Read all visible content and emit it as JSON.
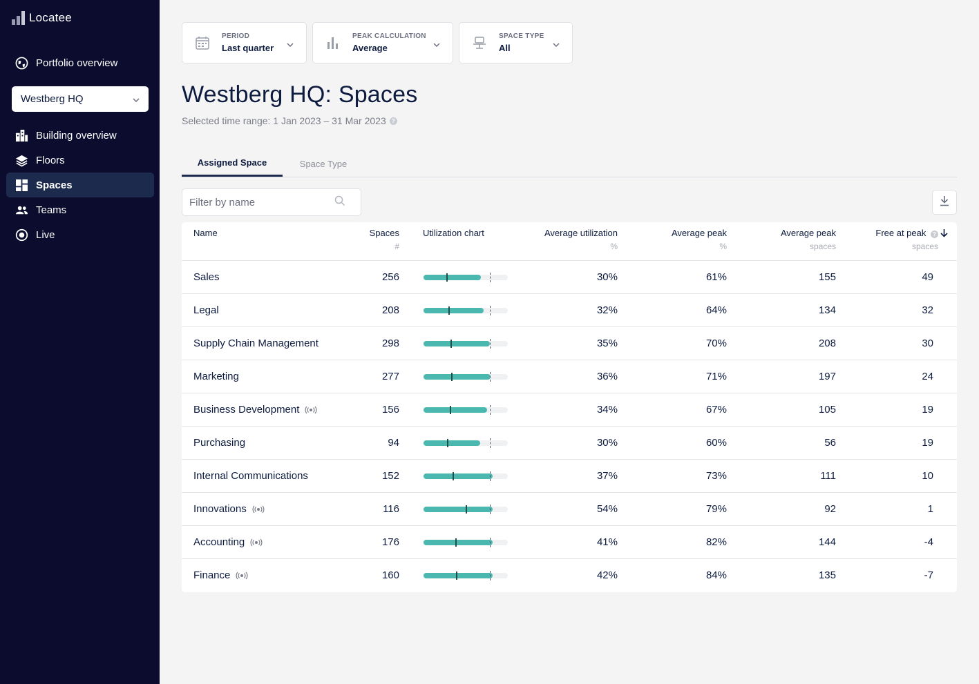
{
  "app": {
    "logo_text": "Locatee"
  },
  "sidebar": {
    "portfolio_label": "Portfolio overview",
    "building_select": "Westberg HQ",
    "items": [
      {
        "label": "Building overview",
        "icon": "building-icon",
        "active": false
      },
      {
        "label": "Floors",
        "icon": "layers-icon",
        "active": false
      },
      {
        "label": "Spaces",
        "icon": "grid-icon",
        "active": true
      },
      {
        "label": "Teams",
        "icon": "people-icon",
        "active": false
      },
      {
        "label": "Live",
        "icon": "live-dot-icon",
        "active": false
      }
    ]
  },
  "filters": {
    "period": {
      "caption": "PERIOD",
      "value": "Last quarter",
      "icon": "calendar-icon"
    },
    "peak": {
      "caption": "PEAK CALCULATION",
      "value": "Average",
      "icon": "bar-chart-icon"
    },
    "space_type": {
      "caption": "SPACE TYPE",
      "value": "All",
      "icon": "desk-chair-icon"
    }
  },
  "page": {
    "title": "Westberg HQ: Spaces",
    "subtitle": "Selected time range: 1 Jan 2023 – 31 Mar 2023",
    "help_icon_text": "?"
  },
  "tabs": [
    {
      "label": "Assigned Space",
      "active": true
    },
    {
      "label": "Space Type",
      "active": false
    }
  ],
  "search": {
    "placeholder": "Filter by name",
    "value": ""
  },
  "table": {
    "columns": {
      "name": "Name",
      "spaces": "Spaces",
      "spaces_unit": "#",
      "chart": "Utilization chart",
      "avg_util": "Average utilization",
      "avg_util_unit": "%",
      "avg_peak": "Average peak",
      "avg_peak_unit": "%",
      "avg_peak_spaces": "Average peak",
      "avg_peak_spaces_unit": "spaces",
      "free": "Free at peak",
      "free_unit": "spaces"
    },
    "rows": [
      {
        "name": "Sales",
        "live": false,
        "spaces": "256",
        "util": 30,
        "peak": 61,
        "util_text": "30%",
        "peak_text": "61%",
        "peak_spaces": "155",
        "free": "49"
      },
      {
        "name": "Legal",
        "live": false,
        "spaces": "208",
        "util": 32,
        "peak": 64,
        "util_text": "32%",
        "peak_text": "64%",
        "peak_spaces": "134",
        "free": "32"
      },
      {
        "name": "Supply Chain Management",
        "live": false,
        "spaces": "298",
        "util": 35,
        "peak": 70,
        "util_text": "35%",
        "peak_text": "70%",
        "peak_spaces": "208",
        "free": "30"
      },
      {
        "name": "Marketing",
        "live": false,
        "spaces": "277",
        "util": 36,
        "peak": 71,
        "util_text": "36%",
        "peak_text": "71%",
        "peak_spaces": "197",
        "free": "24"
      },
      {
        "name": "Business Development",
        "live": true,
        "spaces": "156",
        "util": 34,
        "peak": 67,
        "util_text": "34%",
        "peak_text": "67%",
        "peak_spaces": "105",
        "free": "19"
      },
      {
        "name": "Purchasing",
        "live": false,
        "spaces": "94",
        "util": 30,
        "peak": 60,
        "util_text": "30%",
        "peak_text": "60%",
        "peak_spaces": "56",
        "free": "19"
      },
      {
        "name": "Internal Communications",
        "live": false,
        "spaces": "152",
        "util": 37,
        "peak": 73,
        "util_text": "37%",
        "peak_text": "73%",
        "peak_spaces": "111",
        "free": "10"
      },
      {
        "name": "Innovations",
        "live": true,
        "spaces": "116",
        "util": 54,
        "peak": 79,
        "util_text": "54%",
        "peak_text": "79%",
        "peak_spaces": "92",
        "free": "1"
      },
      {
        "name": "Accounting",
        "live": true,
        "spaces": "176",
        "util": 41,
        "peak": 82,
        "util_text": "41%",
        "peak_text": "82%",
        "peak_spaces": "144",
        "free": "-4"
      },
      {
        "name": "Finance",
        "live": true,
        "spaces": "160",
        "util": 42,
        "peak": 84,
        "util_text": "42%",
        "peak_text": "84%",
        "peak_spaces": "135",
        "free": "-7"
      }
    ]
  },
  "colors": {
    "sidebar_bg": "#0b0c2e",
    "accent": "#4bb8b0",
    "active_nav": "#1c2a4e"
  }
}
